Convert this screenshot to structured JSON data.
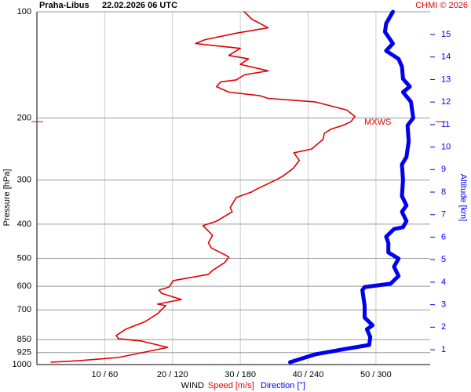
{
  "chart_data": {
    "type": "profile",
    "title": "Praha-Libus",
    "subtitle": "22.02.2026 06 UTC",
    "credit": "CHMI © 2026",
    "y_label": "Pressure [hPa]",
    "y2_label": "Altitude [km]",
    "x_label": "WIND",
    "ylog": true,
    "grid": true,
    "ylim": [
      1000,
      100
    ],
    "yticks": [
      100,
      200,
      300,
      400,
      500,
      600,
      700,
      850,
      925,
      1000
    ],
    "y2lim": [
      0.34,
      16.01
    ],
    "y2ticks": [
      1,
      2,
      3,
      4,
      5,
      6,
      7,
      8,
      9,
      10,
      11,
      12,
      13,
      14,
      15
    ],
    "xlim": [
      0,
      58
    ],
    "x2lim": [
      0,
      348
    ],
    "xticks": [
      {
        "value": 10,
        "label": "10 / 60"
      },
      {
        "value": 20,
        "label": "20 / 120"
      },
      {
        "value": 30,
        "label": "30 / 180"
      },
      {
        "value": 40,
        "label": "40 / 240"
      },
      {
        "value": 50,
        "label": "50 / 300"
      }
    ],
    "mxws": {
      "label": "MXWS",
      "pressure": 205
    },
    "series": [
      {
        "name": "Speed [m/s]",
        "color": "#e00000",
        "axis": "x",
        "pressure": [
          985,
          975,
          955,
          894,
          858,
          845,
          827,
          794,
          755,
          717,
          681,
          674,
          654,
          628,
          615,
          603,
          578,
          555,
          541,
          514,
          496,
          488,
          467,
          452,
          430,
          413,
          404,
          392,
          369,
          359,
          336,
          324,
          319,
          300,
          293,
          278,
          264,
          251,
          245,
          230,
          221,
          215,
          210,
          205,
          198,
          190,
          180,
          176,
          173,
          169,
          163,
          158,
          156,
          151,
          147,
          141,
          136,
          133,
          127,
          123,
          120,
          115,
          111,
          105,
          100
        ],
        "values": [
          2.1,
          6.2,
          12.0,
          19.3,
          15.5,
          12.0,
          11.7,
          13.1,
          16.0,
          17.8,
          19.0,
          17.8,
          21.3,
          18.4,
          18.0,
          19.5,
          20.1,
          25.3,
          25.9,
          27.7,
          28.3,
          27.7,
          25.7,
          25.3,
          25.9,
          25.0,
          24.5,
          26.5,
          28.8,
          28.5,
          29.4,
          31.7,
          32.3,
          35.2,
          36.2,
          37.8,
          38.7,
          37.9,
          40.5,
          42.2,
          42.4,
          43.4,
          45.1,
          46.3,
          46.9,
          45.7,
          41.0,
          34.1,
          32.9,
          28.3,
          26.5,
          27.1,
          29.4,
          30.6,
          34.1,
          30.0,
          31.2,
          28.3,
          30.0,
          23.4,
          24.8,
          29.4,
          34.1,
          31.7,
          30.6
        ]
      },
      {
        "name": "Direction [°]",
        "color": "#0000ee",
        "axis": "x2",
        "pressure": [
          985,
          936,
          902,
          880,
          836,
          794,
          774,
          736,
          681,
          615,
          603,
          590,
          561,
          528,
          501,
          481,
          452,
          434,
          413,
          408,
          392,
          369,
          354,
          333,
          300,
          271,
          258,
          233,
          210,
          200,
          180,
          169,
          163,
          155,
          143,
          136,
          129,
          123,
          114,
          108,
          100
        ],
        "values": [
          224,
          246,
          274,
          294,
          295,
          292,
          297,
          290,
          290,
          288,
          290,
          313,
          320,
          316,
          320,
          311,
          311,
          309,
          316,
          324,
          327,
          323,
          327,
          323,
          324,
          323,
          327,
          329,
          328,
          333,
          331,
          324,
          330,
          324,
          323,
          320,
          309,
          315,
          308,
          309,
          315
        ]
      }
    ]
  }
}
